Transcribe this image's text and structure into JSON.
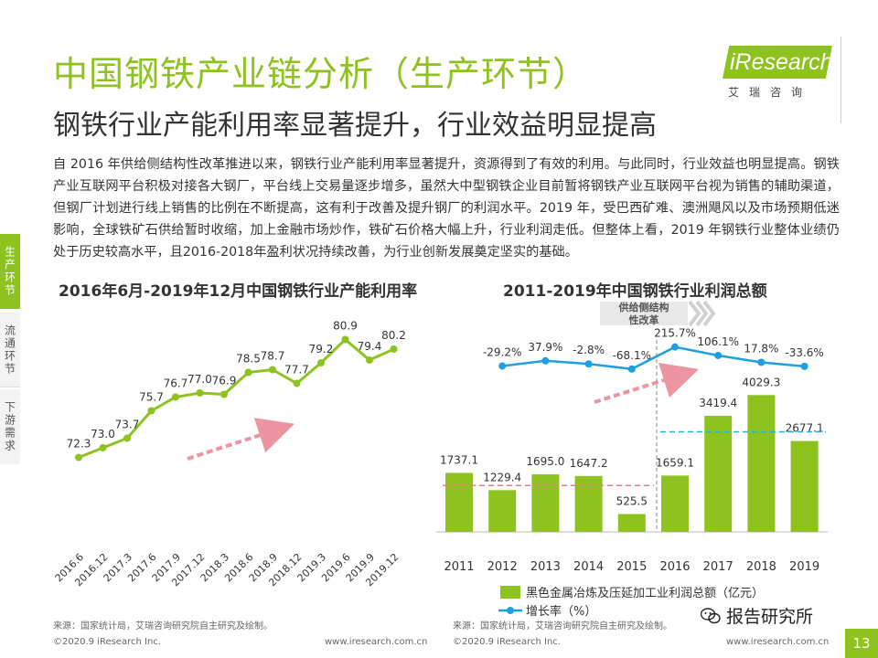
{
  "title": "中国钢铁产业链分析（生产环节）",
  "subtitle": "钢铁行业产能利用率显著提升，行业效益明显提高",
  "logo": {
    "text": "iResearch",
    "cn": "艾瑞咨询"
  },
  "body_text": "自 2016 年供给侧结构性改革推进以来，钢铁行业产能利用率显著提升，资源得到了有效的利用。与此同时，行业效益也明显提高。钢铁产业互联网平台积极对接各大钢厂，平台线上交易量逐步增多，虽然大中型钢铁企业目前暂将钢铁产业互联网平台视为销售的辅助渠道，但钢厂计划进行线上销售的比例在不断提高，这有利于改善及提升钢厂的利润水平。2019 年，受巴西矿难、澳洲飓风以及市场预期低迷影响，全球铁矿石供给暂时收缩，加上金融市场炒作，铁矿石价格大幅上升，行业利润走低。但整体上看，2019 年钢铁行业整体业绩仍处于历史较高水平，且2016-2018年盈利状况持续改善，为行业创新发展奠定坚实的基础。",
  "side_tabs": [
    "生产环节",
    "流通环节",
    "下游需求"
  ],
  "colors": {
    "accent": "#8dc21f",
    "line_blue": "#1ea0e0",
    "dash_pink": "#e87a8a",
    "dash_cyan": "#19b6e0"
  },
  "chart_data": [
    {
      "type": "line",
      "title": "2016年6月-2019年12月中国钢铁行业产能利用率",
      "categories": [
        "2016.6",
        "2016.12",
        "2017.3",
        "2017.6",
        "2017.9",
        "2017.12",
        "2018.3",
        "2018.6",
        "2018.9",
        "2018.12",
        "2019.3",
        "2019.6",
        "2019.9",
        "2019.12"
      ],
      "series": [
        {
          "name": "",
          "values": [
            72.3,
            73.0,
            73.7,
            75.7,
            76.7,
            77.0,
            76.9,
            78.5,
            78.7,
            77.7,
            79.2,
            80.9,
            79.4,
            80.2
          ]
        }
      ],
      "xlabel": "",
      "ylabel": "",
      "ylim": [
        66,
        83
      ],
      "grid": false,
      "legend": "none",
      "annotations": [
        "upward-trend-arrow"
      ]
    },
    {
      "type": "bar",
      "title": "2011-2019年中国钢铁行业利润总额",
      "categories": [
        "2011",
        "2012",
        "2013",
        "2014",
        "2015",
        "2016",
        "2017",
        "2018",
        "2019"
      ],
      "series": [
        {
          "name": "黑色金属冶炼及压延加工业利润总额（亿元）",
          "type": "bar",
          "values": [
            1737.1,
            1229.4,
            1695.0,
            1647.2,
            525.5,
            1659.1,
            3419.4,
            4029.3,
            2677.1
          ]
        },
        {
          "name": "增长率（%）",
          "type": "line",
          "values": [
            null,
            -29.2,
            37.9,
            -2.8,
            -68.1,
            215.7,
            106.1,
            17.8,
            -33.6
          ]
        }
      ],
      "value_labels": [
        "1737.1",
        "1229.4",
        "1695.0",
        "1647.2",
        "525.5",
        "1659.1",
        "3419.4",
        "4029.3",
        "2677.1"
      ],
      "growth_labels": [
        "-29.2%",
        "37.9%",
        "-2.8%",
        "-68.1%",
        "215.7%",
        "106.1%",
        "17.8%",
        "-33.6%"
      ],
      "ylim": [
        0,
        4800
      ],
      "grid": false,
      "legend": "bottom",
      "annotation_box": "供给侧结构性改革",
      "annotations": [
        "upward-trend-arrow",
        "average-line-2011-2015",
        "average-line-2016-2019"
      ]
    }
  ],
  "source_left": "来源：国家统计局，艾瑞咨询研究院自主研究及绘制。",
  "source_right": "来源：国家统计局，艾瑞咨询研究院自主研究及绘制。",
  "footer_left_1": "©2020.9 iResearch Inc.",
  "footer_left_2": "www.iresearch.com.cn",
  "footer_right_1": "©2020.9 iResearch Inc.",
  "footer_right_2": "www.iresearch.com.cn",
  "wechat_label": "报告研究所",
  "page_number": "13"
}
